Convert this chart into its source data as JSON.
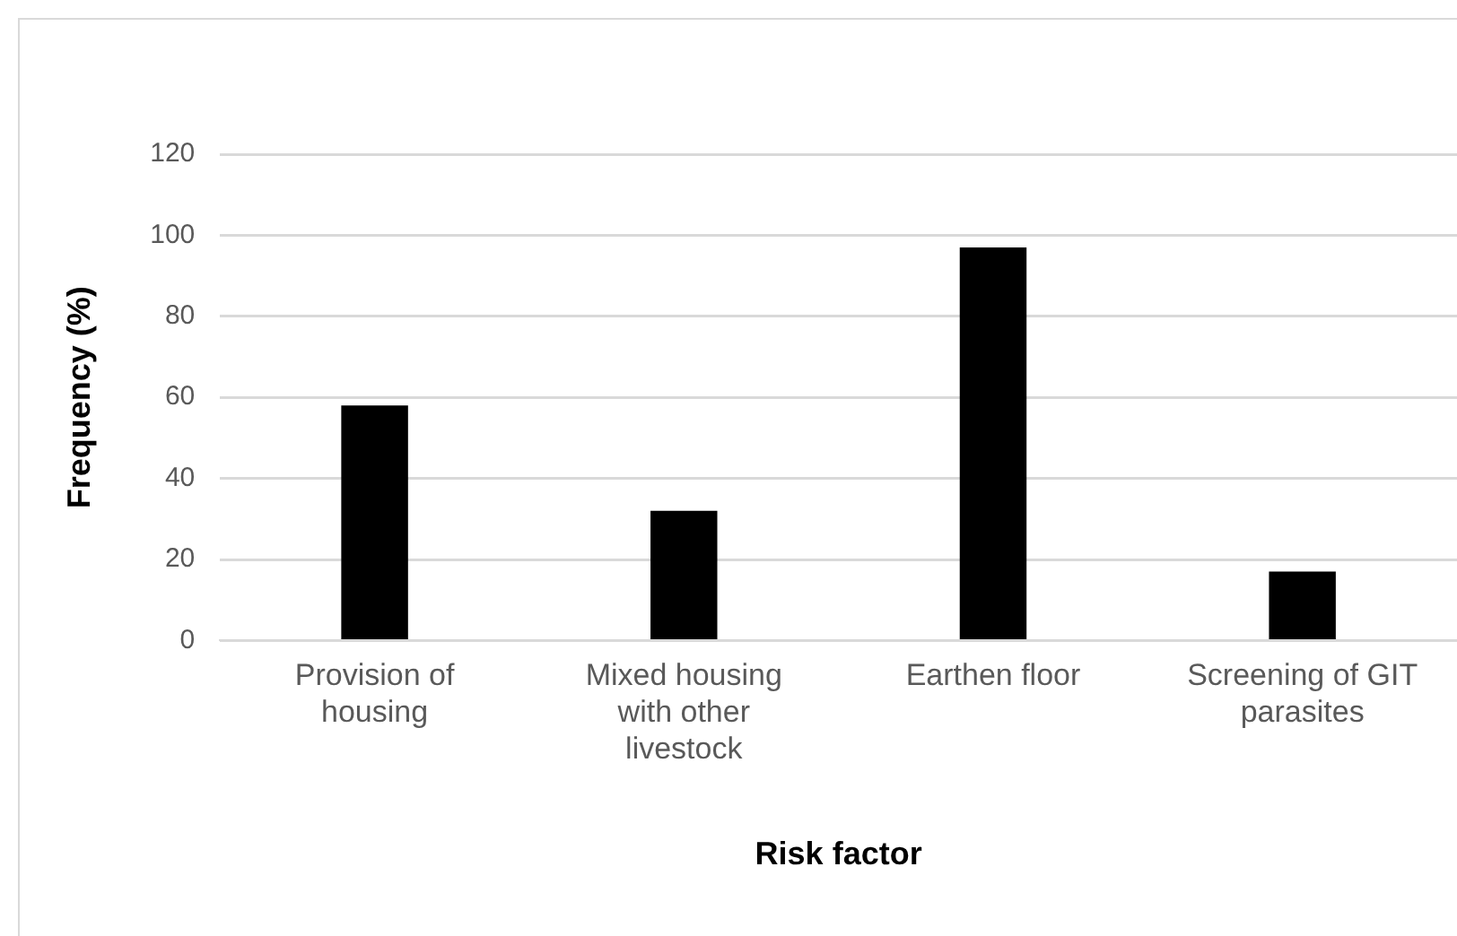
{
  "chart_data": {
    "type": "bar",
    "xlabel": "Risk factor",
    "ylabel": "Frequency (%)",
    "categories": [
      "Provision of housing",
      "Mixed housing with other livestock",
      "Earthen floor",
      "Screening of GIT parasites"
    ],
    "values": [
      58,
      32,
      97,
      17
    ],
    "color": "#000000",
    "ylim": [
      0,
      120
    ],
    "yticks": [
      0,
      20,
      40,
      60,
      80,
      100,
      120
    ],
    "grid": "y",
    "legend": false
  }
}
